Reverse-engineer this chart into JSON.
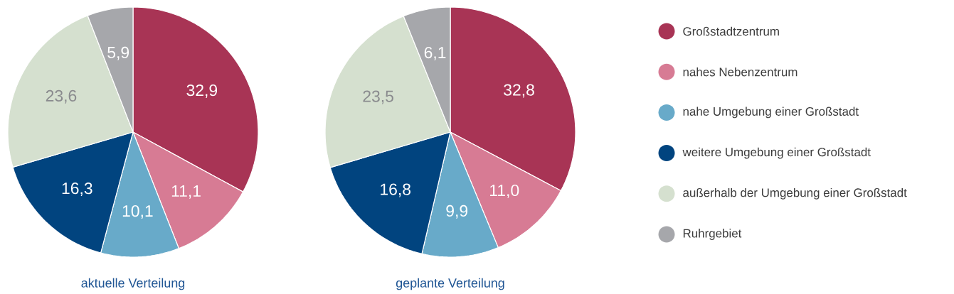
{
  "chart_data": [
    {
      "type": "pie",
      "title": "aktuelle Verteilung",
      "categories": [
        null,
        null,
        null,
        null,
        null,
        null
      ],
      "values": [
        32.9,
        11.1,
        10.1,
        16.3,
        23.6,
        5.9
      ],
      "value_labels": [
        "32,9",
        "11,1",
        "10,1",
        "16,3",
        "23,6",
        "5,9"
      ],
      "colors": [
        "#a83455",
        "#d77b94",
        "#68aac9",
        "#01447f",
        "#d5e0cf",
        "#a6a7ab"
      ]
    },
    {
      "type": "pie",
      "title": "geplante Verteilung",
      "categories": [
        "Großstadtzentrum",
        "nahes Nebenzentrum",
        "nahe Umgebung einer Großstadt",
        "weitere Umgebung einer Großstadt",
        "außerhalb der Umgebung einer Großstadt",
        "Ruhrgebiet"
      ],
      "values": [
        32.8,
        11.0,
        9.9,
        16.8,
        23.5,
        6.1
      ],
      "value_labels": [
        "32,8",
        "11,0",
        "9,9",
        "16,8",
        "23,5",
        "6,1"
      ],
      "colors": [
        "#a83455",
        "#d77b94",
        "#68aac9",
        "#01447f",
        "#d5e0cf",
        "#a6a7ab"
      ],
      "legend": "right"
    }
  ]
}
